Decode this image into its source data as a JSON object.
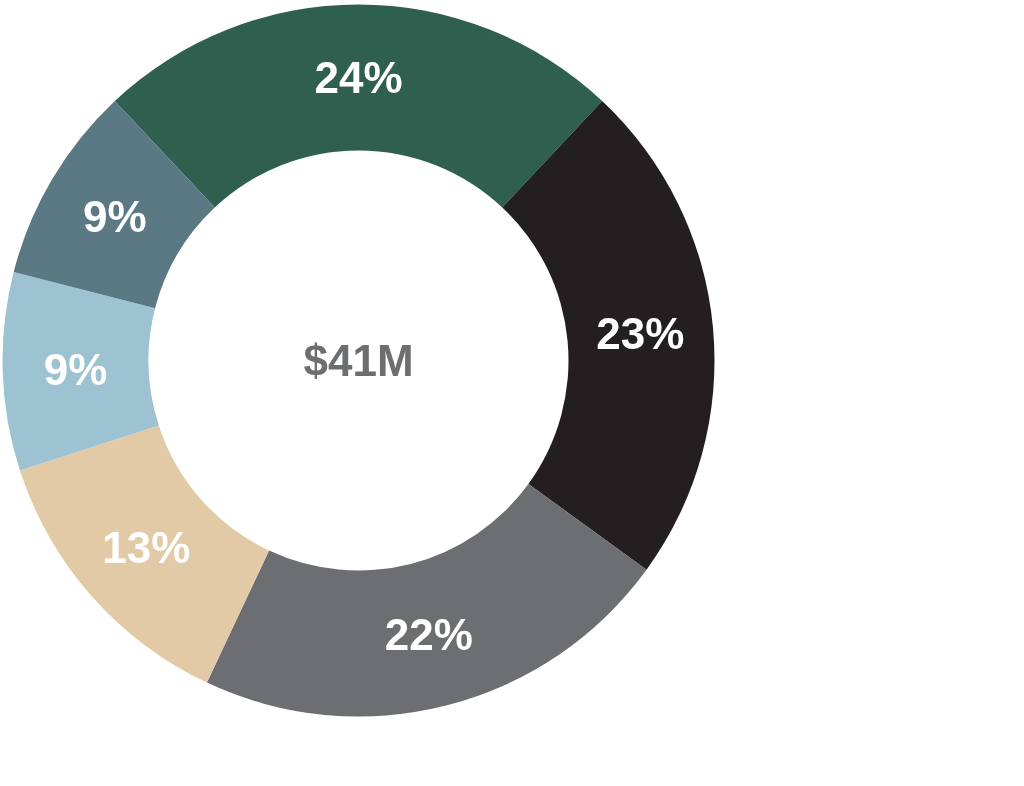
{
  "chart_data": {
    "type": "donut",
    "title": "$41M",
    "categories": [
      null,
      null,
      null,
      null,
      null,
      null
    ],
    "values": [
      24,
      23,
      22,
      13,
      9,
      9
    ],
    "value_labels": [
      "24%",
      "23%",
      "22%",
      "13%",
      "9%",
      "9%"
    ],
    "colors": [
      "#2f604f",
      "#231f20",
      "#6d6e72",
      "#e1caa5",
      "#9dc3d2",
      "#5b7984"
    ]
  }
}
